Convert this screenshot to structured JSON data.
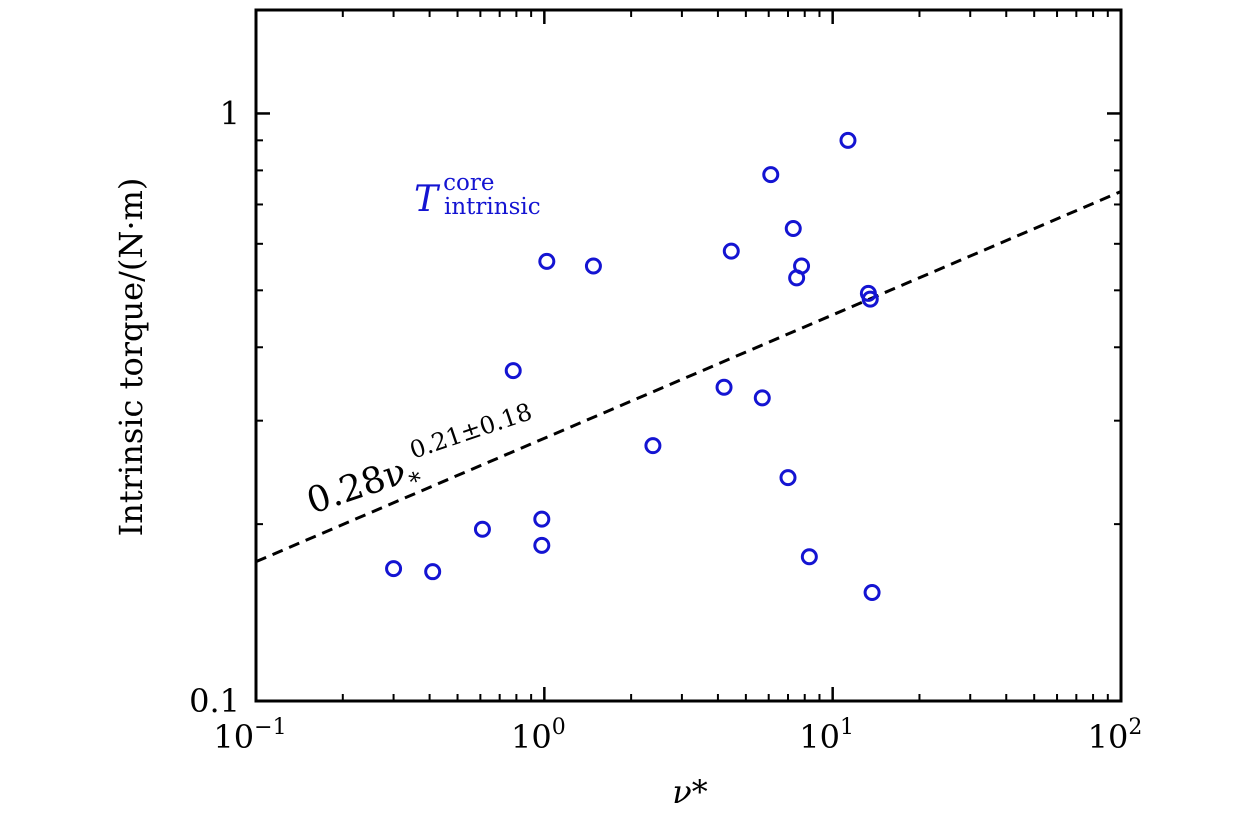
{
  "chart_data": {
    "type": "scatter",
    "xlabel": "ν*",
    "ylabel": "Intrinsic torque/(N·m)",
    "x_scale": "log",
    "y_scale": "log",
    "xlim": [
      0.1,
      100
    ],
    "ylim": [
      0.1,
      1.5
    ],
    "x_ticks": [
      {
        "value": 0.1,
        "base": "10",
        "exp": "−1"
      },
      {
        "value": 1,
        "base": "10",
        "exp": "0"
      },
      {
        "value": 10,
        "base": "10",
        "exp": "1"
      },
      {
        "value": 100,
        "base": "10",
        "exp": "2"
      }
    ],
    "y_ticks": [
      {
        "value": 0.1,
        "label": "0.1"
      },
      {
        "value": 1,
        "label": "1"
      }
    ],
    "grid": false,
    "series": [
      {
        "name": "T_intrinsic^core",
        "name_main": "T",
        "name_sup": "core",
        "name_sub": "intrinsic",
        "marker": "open-circle",
        "color": "#1414d2",
        "points": [
          {
            "x": 0.3,
            "y": 0.168
          },
          {
            "x": 0.41,
            "y": 0.166
          },
          {
            "x": 0.61,
            "y": 0.196
          },
          {
            "x": 0.78,
            "y": 0.365
          },
          {
            "x": 0.98,
            "y": 0.204
          },
          {
            "x": 0.98,
            "y": 0.184
          },
          {
            "x": 1.02,
            "y": 0.56
          },
          {
            "x": 1.48,
            "y": 0.55
          },
          {
            "x": 2.38,
            "y": 0.272
          },
          {
            "x": 4.2,
            "y": 0.342
          },
          {
            "x": 4.45,
            "y": 0.583
          },
          {
            "x": 5.7,
            "y": 0.328
          },
          {
            "x": 6.1,
            "y": 0.787
          },
          {
            "x": 7.0,
            "y": 0.24
          },
          {
            "x": 7.3,
            "y": 0.637
          },
          {
            "x": 7.5,
            "y": 0.525
          },
          {
            "x": 7.8,
            "y": 0.55
          },
          {
            "x": 8.3,
            "y": 0.176
          },
          {
            "x": 11.3,
            "y": 0.9
          },
          {
            "x": 13.3,
            "y": 0.494
          },
          {
            "x": 13.5,
            "y": 0.483
          },
          {
            "x": 13.7,
            "y": 0.153
          }
        ]
      }
    ],
    "fit": {
      "coefficient": 0.28,
      "exponent": 0.21,
      "label_main": "0.28ν",
      "label_sub": "*",
      "label_sup": "0.21±0.18",
      "style": "dashed",
      "color": "#000000"
    }
  }
}
